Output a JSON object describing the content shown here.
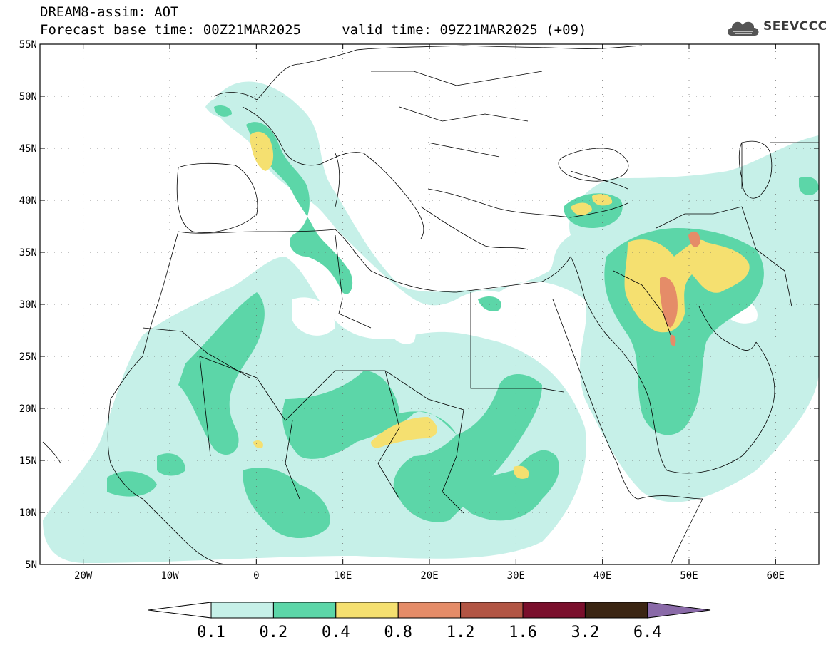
{
  "header": {
    "title": "DREAM8-assim: AOT",
    "subtitle": "Forecast base time: 00Z21MAR2025     valid time: 09Z21MAR2025 (+09)"
  },
  "logo": {
    "icon": "cloud-icon",
    "text": "SEEVCCC"
  },
  "map": {
    "lon_range": [
      -25,
      65
    ],
    "lat_range": [
      5,
      55
    ],
    "grid": "dotted",
    "lat_ticks": [
      {
        "value": 55,
        "label": "55N"
      },
      {
        "value": 50,
        "label": "50N"
      },
      {
        "value": 45,
        "label": "45N"
      },
      {
        "value": 40,
        "label": "40N"
      },
      {
        "value": 35,
        "label": "35N"
      },
      {
        "value": 30,
        "label": "30N"
      },
      {
        "value": 25,
        "label": "25N"
      },
      {
        "value": 20,
        "label": "20N"
      },
      {
        "value": 15,
        "label": "15N"
      },
      {
        "value": 10,
        "label": "10N"
      },
      {
        "value": 5,
        "label": "5N"
      }
    ],
    "lon_ticks": [
      {
        "value": -20,
        "label": "20W"
      },
      {
        "value": -10,
        "label": "10W"
      },
      {
        "value": 0,
        "label": "0"
      },
      {
        "value": 10,
        "label": "10E"
      },
      {
        "value": 20,
        "label": "20E"
      },
      {
        "value": 30,
        "label": "30E"
      },
      {
        "value": 40,
        "label": "40E"
      },
      {
        "value": 50,
        "label": "50E"
      },
      {
        "value": 60,
        "label": "60E"
      }
    ]
  },
  "colorbar": {
    "colors": {
      "under": "#ffffff",
      "c1": "#c6f0e8",
      "c2": "#5cd6a8",
      "c3": "#f5e070",
      "c4": "#e58c68",
      "c5": "#b25544",
      "c6": "#7a0f2c",
      "c7": "#3b2513",
      "over": "#8a6aa8"
    },
    "labels": [
      "0.1",
      "0.2",
      "0.4",
      "0.8",
      "1.2",
      "1.6",
      "3.2",
      "6.4"
    ]
  }
}
